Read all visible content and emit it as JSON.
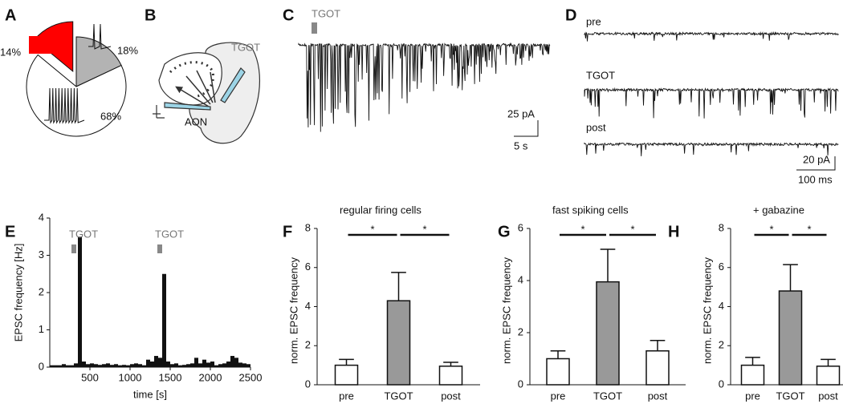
{
  "panels": {
    "letters": [
      "A",
      "B",
      "C",
      "D",
      "E",
      "F",
      "G",
      "H"
    ],
    "B": {
      "stimulus": "TGOT",
      "region": "AON"
    },
    "C": {
      "stimulus": "TGOT",
      "scale_y": "25 pA",
      "scale_x": "5 s"
    },
    "D": {
      "conditions": [
        "pre",
        "TGOT",
        "post"
      ],
      "scale_y": "20 pA",
      "scale_x": "100 ms"
    }
  },
  "chart_data": [
    {
      "type": "pie",
      "values": [
        14,
        18,
        68
      ],
      "value_labels": [
        "14%",
        "18%",
        "68%"
      ],
      "colors": [
        "#ff0000",
        "#b3b3b3",
        "#ffffff"
      ]
    },
    {
      "type": "histogram",
      "ylabel": "EPSC frequency [Hz]",
      "xlabel": "time [s]",
      "color": "#111111",
      "bins": [
        0,
        50,
        100,
        150,
        200,
        250,
        300,
        350,
        400,
        450,
        500,
        550,
        600,
        650,
        700,
        750,
        800,
        850,
        900,
        950,
        1000,
        1050,
        1100,
        1150,
        1200,
        1250,
        1300,
        1350,
        1400,
        1450,
        1500,
        1550,
        1600,
        1650,
        1700,
        1750,
        1800,
        1850,
        1900,
        1950,
        2000,
        2050,
        2100,
        2150,
        2200,
        2250,
        2300,
        2350,
        2400,
        2450,
        2500
      ],
      "values": [
        0.05,
        0.05,
        0.05,
        0.08,
        0.05,
        0.05,
        0.1,
        3.5,
        0.15,
        0.08,
        0.1,
        0.08,
        0.06,
        0.08,
        0.1,
        0.06,
        0.08,
        0.05,
        0.06,
        0.05,
        0.08,
        0.1,
        0.08,
        0.05,
        0.2,
        0.15,
        0.3,
        0.25,
        2.5,
        0.15,
        0.08,
        0.1,
        0.05,
        0.06,
        0.08,
        0.1,
        0.25,
        0.1,
        0.2,
        0.12,
        0.15,
        0.05,
        0.08,
        0.1,
        0.15,
        0.3,
        0.25,
        0.12,
        0.1,
        0.08
      ],
      "xlim": [
        0,
        2500
      ],
      "xticks": [
        500,
        1000,
        1500,
        2000,
        2500
      ],
      "ylim": [
        0,
        4
      ],
      "yticks": [
        0,
        1,
        2,
        3,
        4
      ],
      "annotations": [
        {
          "label": "TGOT",
          "x": 300
        },
        {
          "label": "TGOT",
          "x": 1370
        }
      ]
    },
    {
      "type": "bar",
      "title": "regular firing cells",
      "ylabel": "norm. EPSC frequency",
      "categories": [
        "pre",
        "TGOT",
        "post"
      ],
      "values": [
        1.0,
        4.3,
        0.95
      ],
      "errors": [
        0.3,
        1.45,
        0.2
      ],
      "colors": [
        "#ffffff",
        "#999999",
        "#ffffff"
      ],
      "ylim": [
        0,
        8
      ],
      "yticks": [
        0,
        2,
        4,
        6,
        8
      ],
      "significance": [
        {
          "pair": [
            "pre",
            "TGOT"
          ],
          "label": "*"
        },
        {
          "pair": [
            "TGOT",
            "post"
          ],
          "label": "*"
        }
      ]
    },
    {
      "type": "bar",
      "title": "fast spiking cells",
      "ylabel": "norm. EPSC frequency",
      "categories": [
        "pre",
        "TGOT",
        "post"
      ],
      "values": [
        1.0,
        3.95,
        1.3
      ],
      "errors": [
        0.3,
        1.25,
        0.4
      ],
      "colors": [
        "#ffffff",
        "#999999",
        "#ffffff"
      ],
      "ylim": [
        0,
        6
      ],
      "yticks": [
        0,
        2,
        4,
        6
      ],
      "significance": [
        {
          "pair": [
            "pre",
            "TGOT"
          ],
          "label": "*"
        },
        {
          "pair": [
            "TGOT",
            "post"
          ],
          "label": "*"
        }
      ]
    },
    {
      "type": "bar",
      "title": "+ gabazine",
      "ylabel": "norm. EPSC frequency",
      "categories": [
        "pre",
        "TGOT",
        "post"
      ],
      "values": [
        1.0,
        4.8,
        0.95
      ],
      "errors": [
        0.4,
        1.35,
        0.35
      ],
      "colors": [
        "#ffffff",
        "#999999",
        "#ffffff"
      ],
      "ylim": [
        0,
        8
      ],
      "yticks": [
        0,
        2,
        4,
        6,
        8
      ],
      "significance": [
        {
          "pair": [
            "pre",
            "TGOT"
          ],
          "label": "*"
        },
        {
          "pair": [
            "TGOT",
            "post"
          ],
          "label": "*"
        }
      ]
    }
  ]
}
